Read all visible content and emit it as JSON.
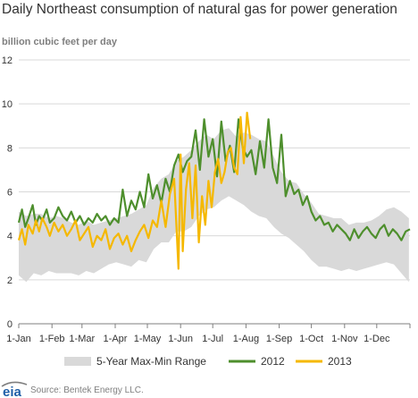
{
  "chart_data": {
    "type": "line",
    "title": "Daily Northeast consumption of natural gas for power generation",
    "ylabel": "billion cubic feet per day",
    "ylim": [
      0,
      12
    ],
    "yticks": [
      0,
      2,
      4,
      6,
      8,
      10,
      12
    ],
    "x_day_range": [
      1,
      366
    ],
    "xticks": [
      {
        "label": "1-Jan",
        "day": 1
      },
      {
        "label": "1-Feb",
        "day": 32
      },
      {
        "label": "1-Mar",
        "day": 60
      },
      {
        "label": "1-Apr",
        "day": 91
      },
      {
        "label": "1-May",
        "day": 121
      },
      {
        "label": "1-Jun",
        "day": 152
      },
      {
        "label": "1-Jul",
        "day": 182
      },
      {
        "label": "1-Aug",
        "day": 213
      },
      {
        "label": "1-Sep",
        "day": 244
      },
      {
        "label": "1-Oct",
        "day": 274
      },
      {
        "label": "1-Nov",
        "day": 305
      },
      {
        "label": "1-Dec",
        "day": 335
      }
    ],
    "grid": true,
    "legend_position": "bottom",
    "series": [
      {
        "name": "5-Year Max-Min Range",
        "kind": "band",
        "color": "#d9d9d9",
        "x": [
          1,
          8,
          15,
          22,
          29,
          36,
          43,
          50,
          57,
          64,
          71,
          78,
          85,
          92,
          99,
          106,
          113,
          120,
          127,
          134,
          141,
          148,
          155,
          162,
          169,
          176,
          183,
          190,
          197,
          204,
          211,
          218,
          225,
          232,
          239,
          246,
          253,
          260,
          267,
          274,
          281,
          288,
          295,
          302,
          309,
          316,
          323,
          330,
          337,
          344,
          351,
          358,
          365
        ],
        "max": [
          5.1,
          4.9,
          5.0,
          5.0,
          4.8,
          4.9,
          4.8,
          4.6,
          4.5,
          4.7,
          4.5,
          4.6,
          4.7,
          4.8,
          4.9,
          5.0,
          5.2,
          5.4,
          6.2,
          6.6,
          6.8,
          7.4,
          7.6,
          7.9,
          8.3,
          8.6,
          8.4,
          8.8,
          8.9,
          8.5,
          8.7,
          8.6,
          8.4,
          8.3,
          7.6,
          6.9,
          6.5,
          6.4,
          5.9,
          5.5,
          5.0,
          4.9,
          4.8,
          4.8,
          4.5,
          4.6,
          4.6,
          4.7,
          4.9,
          5.2,
          5.3,
          5.1,
          4.8
        ],
        "min": [
          2.2,
          1.9,
          2.3,
          2.2,
          2.4,
          2.3,
          2.3,
          2.3,
          2.2,
          2.4,
          2.3,
          2.5,
          2.7,
          2.8,
          2.7,
          2.6,
          2.9,
          2.8,
          3.4,
          3.7,
          3.7,
          4.2,
          4.2,
          4.4,
          4.9,
          5.2,
          5.3,
          5.6,
          5.8,
          5.6,
          5.4,
          5.1,
          4.9,
          4.8,
          4.4,
          4.1,
          3.9,
          3.6,
          3.3,
          2.9,
          2.6,
          2.6,
          2.5,
          2.4,
          2.5,
          2.4,
          2.5,
          2.6,
          2.7,
          2.8,
          2.7,
          2.3,
          1.9
        ]
      },
      {
        "name": "2012",
        "kind": "line",
        "color": "#4e8f2d",
        "x": [
          1,
          4,
          7,
          10,
          14,
          17,
          20,
          23,
          27,
          30,
          34,
          38,
          42,
          46,
          50,
          54,
          58,
          62,
          66,
          70,
          74,
          78,
          82,
          86,
          90,
          94,
          98,
          102,
          106,
          110,
          114,
          118,
          122,
          126,
          130,
          134,
          138,
          142,
          146,
          150,
          154,
          158,
          162,
          166,
          170,
          174,
          178,
          182,
          186,
          190,
          194,
          198,
          202,
          206,
          210,
          214,
          218,
          222,
          226,
          230,
          234,
          238,
          242,
          246,
          250,
          254,
          258,
          262,
          266,
          270,
          274,
          278,
          282,
          286,
          290,
          294,
          298,
          302,
          306,
          310,
          314,
          318,
          322,
          326,
          330,
          334,
          338,
          342,
          346,
          350,
          354,
          358,
          362,
          366
        ],
        "values": [
          4.6,
          5.2,
          4.4,
          4.8,
          5.4,
          4.5,
          4.9,
          4.7,
          5.2,
          4.6,
          4.8,
          5.3,
          4.9,
          4.7,
          5.1,
          4.6,
          4.9,
          4.5,
          4.8,
          4.6,
          5.0,
          4.7,
          4.9,
          4.5,
          4.8,
          4.6,
          6.1,
          4.9,
          5.6,
          5.2,
          6.0,
          5.3,
          6.8,
          5.7,
          6.3,
          5.5,
          6.6,
          6.0,
          7.2,
          7.7,
          6.9,
          7.4,
          7.6,
          8.8,
          7.0,
          9.3,
          7.6,
          8.4,
          6.7,
          9.2,
          7.4,
          8.1,
          6.9,
          9.3,
          8.0,
          7.6,
          7.9,
          6.8,
          8.3,
          7.1,
          9.3,
          7.1,
          6.4,
          8.6,
          5.8,
          6.5,
          5.9,
          6.1,
          5.4,
          5.8,
          5.1,
          4.7,
          4.9,
          4.5,
          4.6,
          4.2,
          4.5,
          4.3,
          4.1,
          3.8,
          4.3,
          3.9,
          4.2,
          4.4,
          4.1,
          3.9,
          4.3,
          4.5,
          4.0,
          4.3,
          4.1,
          3.8,
          4.2,
          4.3
        ]
      },
      {
        "name": "2013",
        "kind": "line",
        "color": "#f5b800",
        "x": [
          1,
          4,
          7,
          10,
          14,
          17,
          20,
          23,
          27,
          30,
          34,
          38,
          42,
          46,
          50,
          54,
          58,
          62,
          66,
          70,
          74,
          78,
          82,
          86,
          90,
          94,
          98,
          102,
          106,
          110,
          114,
          118,
          122,
          126,
          130,
          134,
          138,
          142,
          146,
          150,
          152,
          154,
          157,
          160,
          163,
          166,
          169,
          172,
          175,
          178,
          181,
          184,
          187,
          190,
          193,
          196,
          199,
          202,
          205,
          208,
          211,
          214,
          217
        ],
        "values": [
          3.8,
          4.3,
          3.6,
          4.5,
          4.1,
          4.7,
          4.2,
          4.8,
          4.4,
          4.0,
          4.6,
          4.2,
          4.5,
          4.0,
          4.3,
          4.7,
          3.8,
          4.1,
          4.4,
          3.5,
          4.0,
          3.8,
          4.3,
          3.4,
          3.9,
          4.1,
          3.6,
          4.0,
          3.3,
          3.8,
          4.2,
          4.5,
          3.9,
          4.7,
          4.4,
          5.6,
          4.4,
          5.9,
          6.6,
          2.5,
          7.7,
          3.3,
          6.1,
          7.3,
          4.8,
          7.2,
          3.7,
          5.8,
          4.5,
          6.5,
          5.3,
          6.9,
          7.5,
          6.4,
          6.9,
          7.8,
          8.0,
          7.1,
          6.8,
          9.4,
          7.3,
          9.6,
          8.4
        ]
      }
    ]
  },
  "source": "Source:  Bentek Energy LLC.",
  "logo_text": "eia",
  "colors": {
    "grid": "#d9d9d9",
    "axis": "#7f7f7f",
    "text": "#333333"
  }
}
